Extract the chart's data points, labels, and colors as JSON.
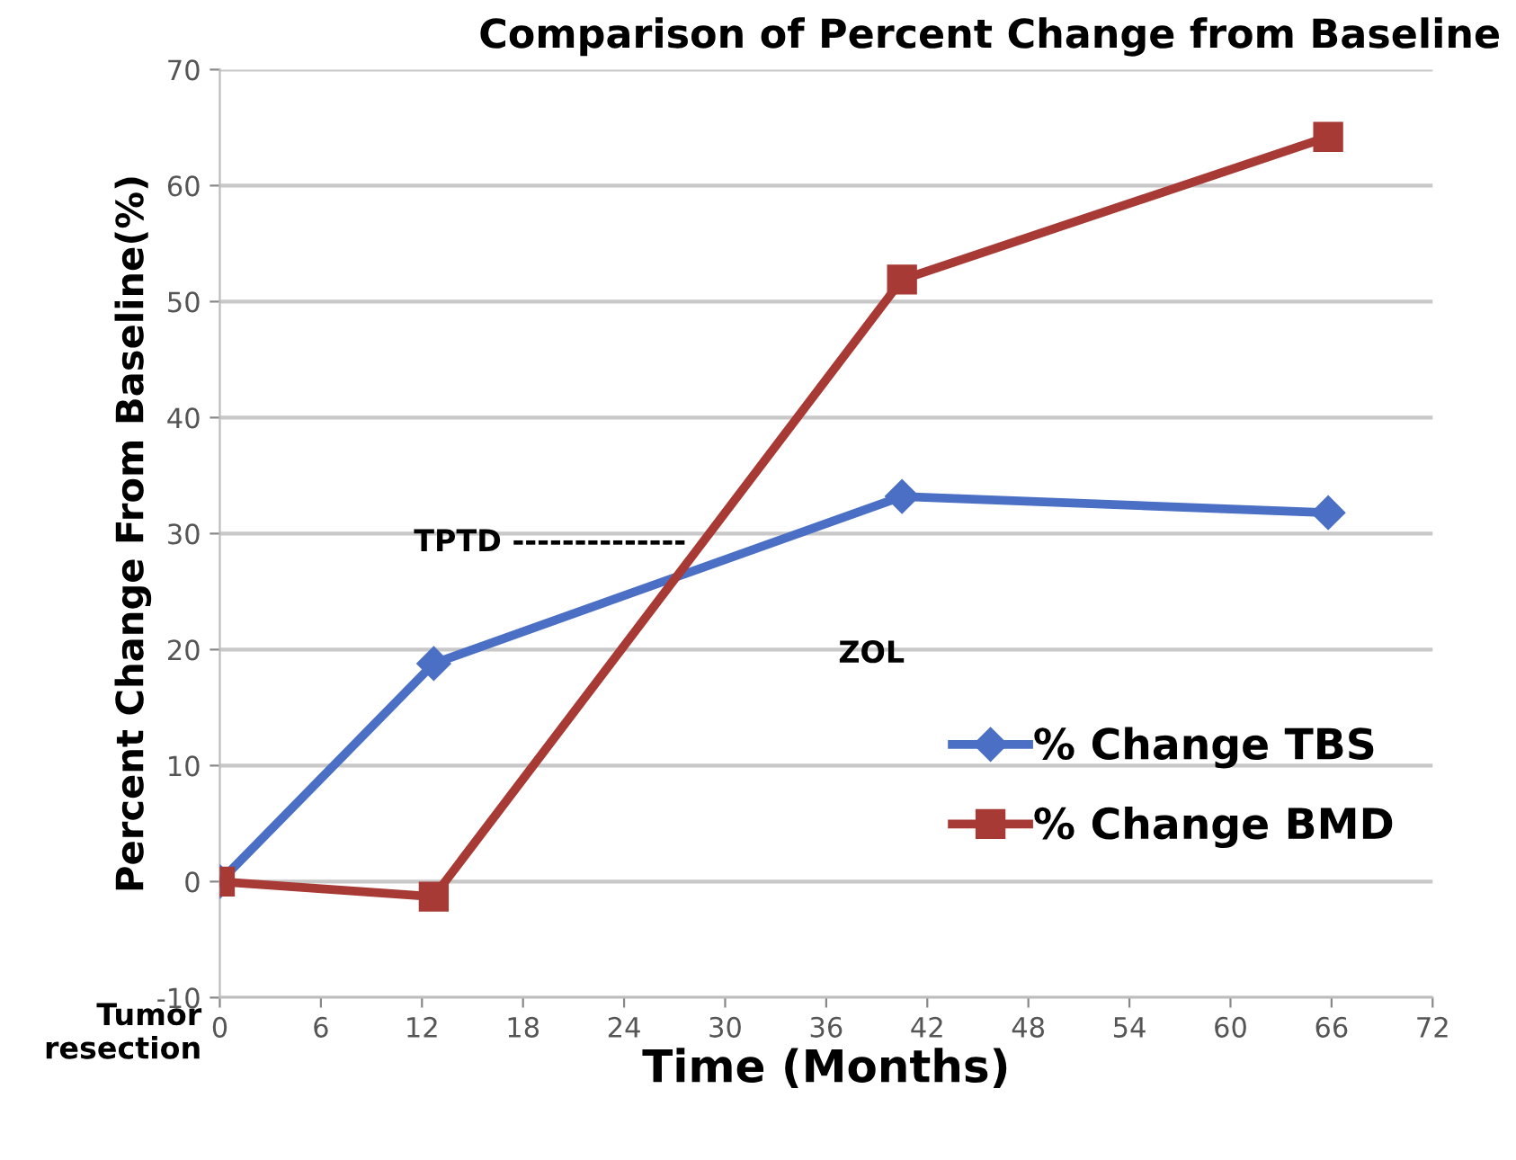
{
  "chart_data": {
    "type": "line",
    "title": "Comparison of Percent Change from Baseline",
    "xlabel": "Time (Months)",
    "ylabel": "Percent Change From Baseline(%)",
    "x": [
      0,
      12.7,
      40.5,
      65.8
    ],
    "series": [
      {
        "name": "% Change TBS",
        "color": "#4a6fc4",
        "marker": "diamond",
        "values": [
          0,
          18.8,
          33.2,
          31.8
        ]
      },
      {
        "name": "% Change BMD",
        "color": "#a83a36",
        "marker": "square",
        "values": [
          0,
          -1.3,
          51.9,
          64.2
        ]
      }
    ],
    "xlim": [
      0,
      72
    ],
    "xticks": [
      0,
      6,
      12,
      18,
      24,
      30,
      36,
      42,
      48,
      54,
      60,
      66,
      72
    ],
    "ylim": [
      -10,
      70
    ],
    "yticks": [
      -10,
      0,
      10,
      20,
      30,
      40,
      50,
      60,
      70
    ],
    "grid": "y",
    "legend": "right",
    "line_style": "solid",
    "annotations": [
      "TPTD --------------",
      "ZOL",
      "Tumor\nresection"
    ]
  }
}
